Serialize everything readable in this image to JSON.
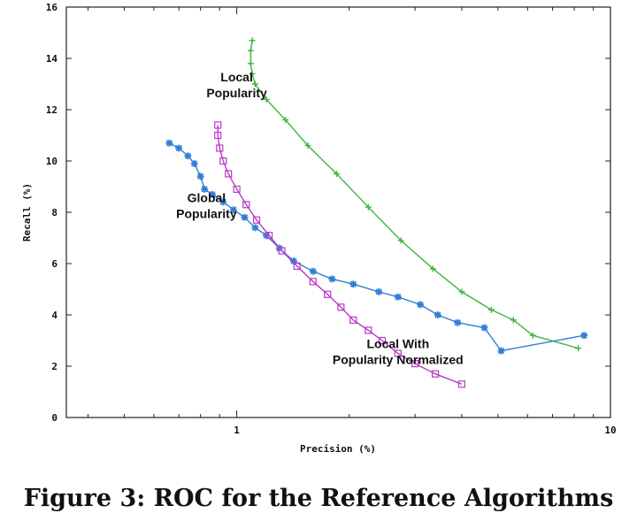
{
  "caption": "Figure 3: ROC for the Reference Algorithms",
  "chart_data": {
    "type": "line",
    "xlabel": "Precision (%)",
    "ylabel": "Recall (%)",
    "xscale": "log",
    "xlim": [
      0.35,
      10
    ],
    "ylim": [
      0,
      16
    ],
    "xticks": [
      1,
      10
    ],
    "yticks": [
      0,
      2,
      4,
      6,
      8,
      10,
      12,
      14,
      16
    ],
    "grid": false,
    "annotations": [
      {
        "lines": [
          "Local",
          "Popularity"
        ],
        "x": 1.0,
        "y": 13.1
      },
      {
        "lines": [
          "Global",
          "Popularity"
        ],
        "x": 0.83,
        "y": 8.4
      },
      {
        "lines": [
          "Local With",
          "Popularity Normalized"
        ],
        "x": 2.7,
        "y": 2.7
      }
    ],
    "series": [
      {
        "label": "Local Popularity",
        "color": "#3fb53f",
        "marker": "plus",
        "x": [
          1.1,
          1.09,
          1.09,
          1.1,
          1.12,
          1.2,
          1.35,
          1.55,
          1.85,
          2.25,
          2.75,
          3.35,
          4.0,
          4.8,
          5.5,
          6.2,
          8.2
        ],
        "y": [
          14.7,
          14.3,
          13.8,
          13.4,
          13.0,
          12.4,
          11.6,
          10.6,
          9.5,
          8.2,
          6.9,
          5.8,
          4.9,
          4.2,
          3.8,
          3.2,
          2.7
        ]
      },
      {
        "label": "Global Popularity",
        "color": "#2f7fd6",
        "marker": "star",
        "x": [
          0.66,
          0.7,
          0.74,
          0.77,
          0.8,
          0.82,
          0.86,
          0.92,
          0.98,
          1.05,
          1.12,
          1.2,
          1.3,
          1.42,
          1.6,
          1.8,
          2.05,
          2.4,
          2.7,
          3.1,
          3.45,
          3.9,
          4.6,
          5.1,
          8.5
        ],
        "y": [
          10.7,
          10.5,
          10.2,
          9.9,
          9.4,
          8.9,
          8.7,
          8.4,
          8.1,
          7.8,
          7.4,
          7.1,
          6.6,
          6.1,
          5.7,
          5.4,
          5.2,
          4.9,
          4.7,
          4.4,
          4.0,
          3.7,
          3.5,
          2.6,
          3.2
        ]
      },
      {
        "label": "Local With Popularity Normalized",
        "color": "#b83ac7",
        "marker": "square",
        "x": [
          0.89,
          0.89,
          0.9,
          0.92,
          0.95,
          1.0,
          1.06,
          1.13,
          1.22,
          1.32,
          1.45,
          1.6,
          1.75,
          1.9,
          2.05,
          2.25,
          2.45,
          2.7,
          3.0,
          3.4,
          4.0
        ],
        "y": [
          11.4,
          11.0,
          10.5,
          10.0,
          9.5,
          8.9,
          8.3,
          7.7,
          7.1,
          6.5,
          5.9,
          5.3,
          4.8,
          4.3,
          3.8,
          3.4,
          3.0,
          2.5,
          2.1,
          1.7,
          1.3
        ]
      }
    ]
  }
}
